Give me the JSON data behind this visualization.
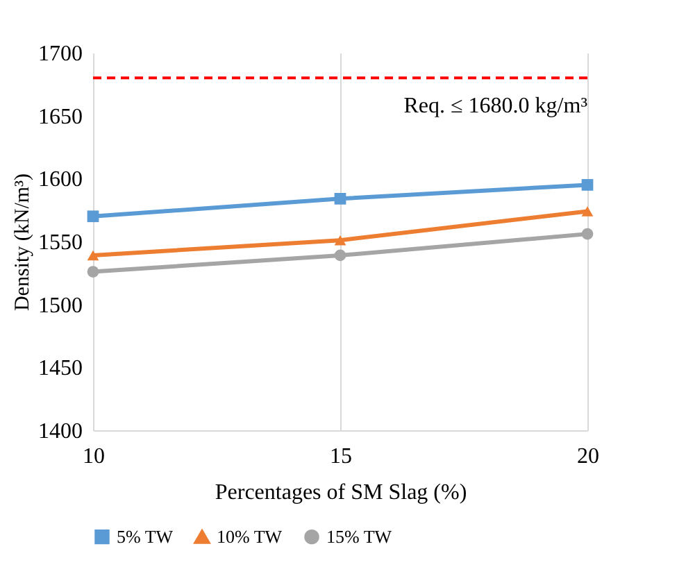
{
  "chart_data": {
    "type": "line",
    "xlabel": "Percentages  of SM Slag (%)",
    "ylabel": "Density  (kN/m³)",
    "x": [
      10,
      15,
      20
    ],
    "xlim": [
      10,
      20
    ],
    "xticks": [
      10,
      15,
      20
    ],
    "ylim": [
      1400,
      1700
    ],
    "yticks": [
      1400,
      1450,
      1500,
      1550,
      1600,
      1650,
      1700
    ],
    "series": [
      {
        "name": "5% TW",
        "color": "#5b9bd5",
        "marker": "square",
        "values": [
          1570,
          1584,
          1595
        ]
      },
      {
        "name": "10% TW",
        "color": "#ed7d31",
        "marker": "triangle",
        "values": [
          1539,
          1551,
          1574
        ]
      },
      {
        "name": "15% TW",
        "color": "#a5a5a5",
        "marker": "circle",
        "values": [
          1526,
          1539,
          1556
        ]
      }
    ],
    "ref_lines": [
      {
        "axis": "y",
        "value": 1680,
        "label": "Req. ≤ 1680.0 kg/m³",
        "color": "#ff0000",
        "line_style": "dashed"
      }
    ],
    "grid": "x",
    "legend": "bottom"
  }
}
